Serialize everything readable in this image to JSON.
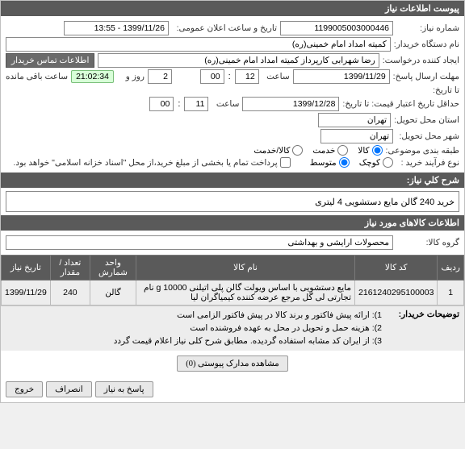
{
  "header": {
    "title": "پیوست اطلاعات نیاز"
  },
  "form": {
    "f1_label": "شماره نیاز:",
    "f1_value": "1199005003000446",
    "f2_label": "تاریخ و ساعت اعلان عمومی:",
    "f2_value": "1399/11/26 - 13:55",
    "f3_label": "نام دستگاه خریدار:",
    "f3_value": "کمیته امداد امام خمینی(ره)",
    "creator_lbl": "ایجاد کننده درخواست:",
    "creator_val": "رضا شهرابی کارپرداز کمیته امداد امام خمینی(ره)",
    "contact_btn": "اطلاعات تماس خریدار",
    "deadline_lbl": "مهلت ارسال پاسخ:",
    "deadline_to_lbl": "تا تاریخ:",
    "deadline_date": "1399/11/29",
    "time_lbl": "ساعت",
    "t_hh": "12",
    "t_mm": "00",
    "tsep": ":",
    "days_val": "2",
    "days_lbl": "روز و",
    "countdown": "21:02:34",
    "remaining_lbl": "ساعت باقی مانده",
    "price_deadline_lbl": "حداقل تاریخ اعتبار قیمت: تا تاریخ:",
    "pd_date": "1399/12/28",
    "pd_hh": "11",
    "pd_mm": "00",
    "delivery_province_lbl": "استان محل تحویل:",
    "delivery_province_val": "تهران",
    "delivery_city_lbl": "شهر محل تحویل:",
    "delivery_city_val": "تهران",
    "budget_lbl": "طبقه بندی موضوعی:",
    "r_goods": "کالا",
    "r_service": "خدمت",
    "r_both": "کالا/خدمت",
    "proc_lbl": "نوع فرآیند خرید :",
    "r_small": "کوچک",
    "r_mid": "متوسط",
    "c_partial_lbl": "پرداخت تمام یا بخشی از مبلغ خرید،از محل \"اسناد خزانه اسلامی\" خواهد بود.",
    "desc_header": "شرح کلي نیاز:",
    "desc_value": "خرید 240 گالن مایع دستشویی 4 لیتری",
    "items_header": "اطلاعات کالاهای مورد نیاز",
    "group_lbl": "گروه کالا:",
    "group_val": "محصولات آرایشی و بهداشتی"
  },
  "table": {
    "cols": [
      "ردیف",
      "کد کالا",
      "نام کالا",
      "واحد شمارش",
      "تعداد / مقدار",
      "تاریخ نیاز"
    ],
    "rows": [
      [
        "1",
        "2161240295100003",
        "مایع دستشویی با اساس ویولت گالن پلی اتیلنی 10000 g نام تجارتی لی گل مرجع عرضه کننده کیمیاگران لیا",
        "گالن",
        "240",
        "1399/11/29"
      ]
    ]
  },
  "notes": {
    "label": "توضیحات خریدار:",
    "lines": [
      "1): ارائه پیش فاکتور و برند کالا در پیش فاکتور الزامی است",
      "2): هزینه حمل و تحویل در محل به عهده فروشنده است",
      "3): از ایران کد مشابه استفاده گردیده. مطابق شرح کلی نیاز اعلام قیمت گردد"
    ]
  },
  "attach_btn": "مشاهده مدارک پیوستی  (0)",
  "footer": {
    "answer": "پاسخ به نیاز",
    "cancel": "انصراف",
    "exit": "خروج"
  }
}
